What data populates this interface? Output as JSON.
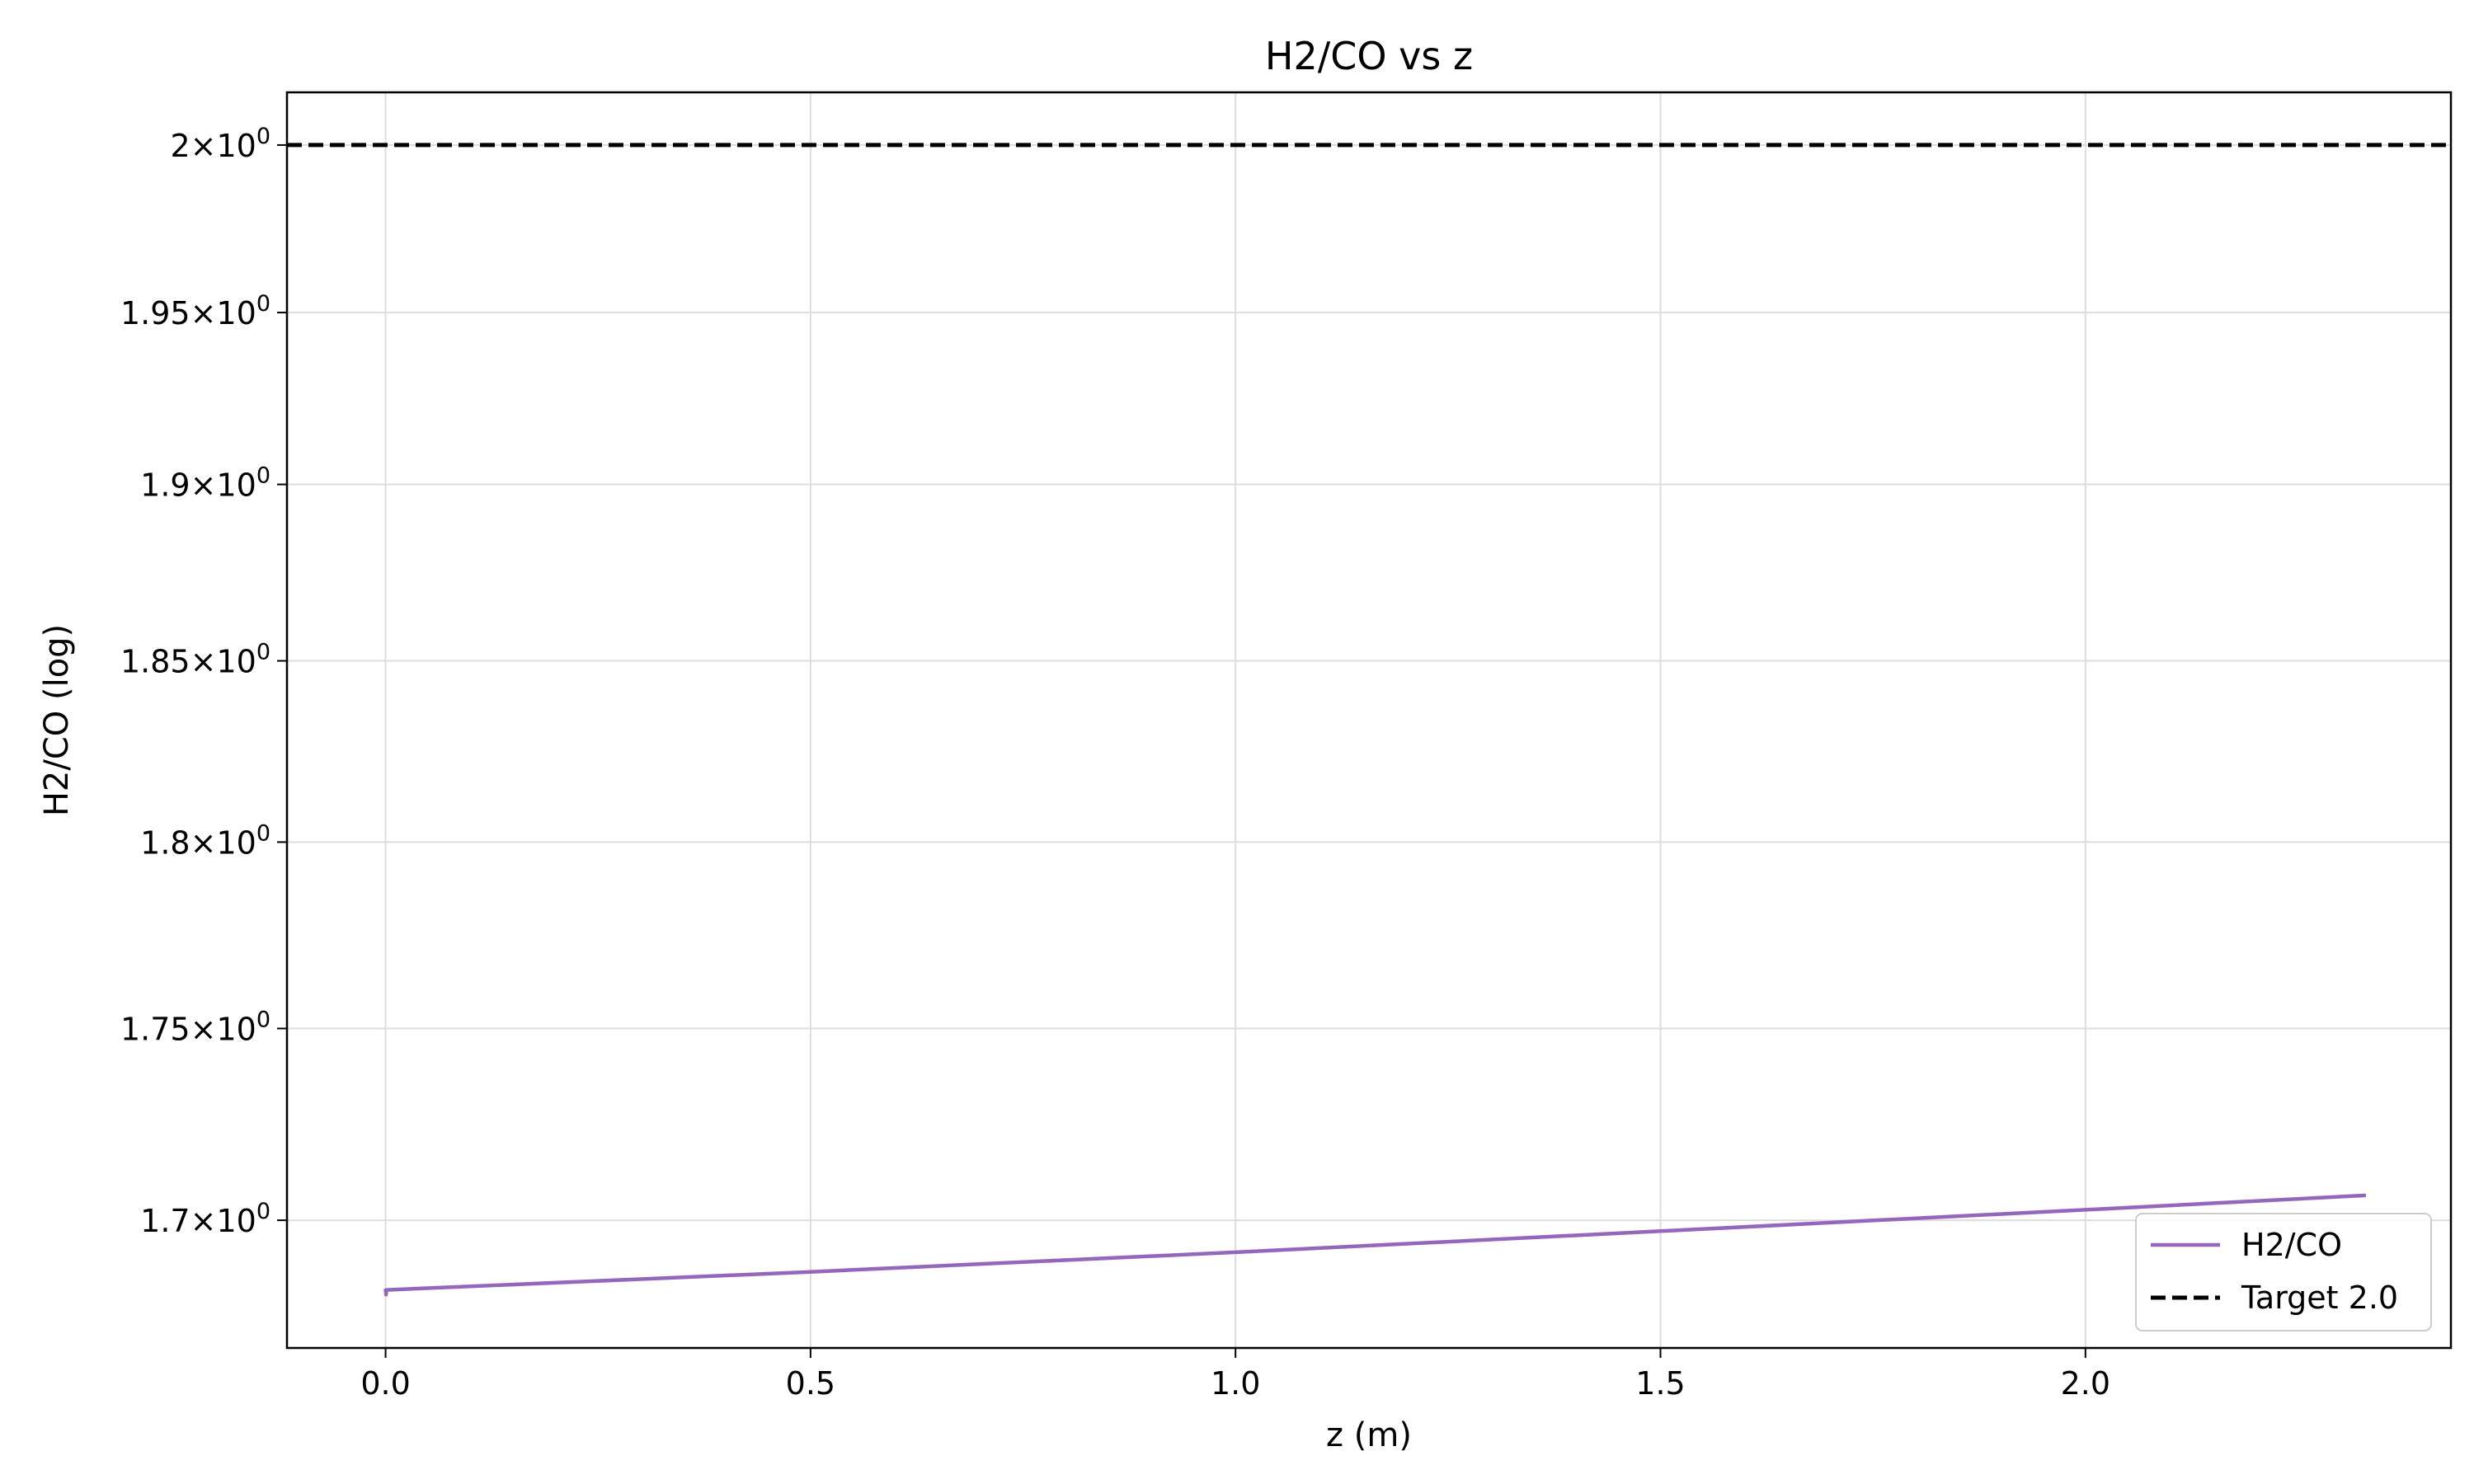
{
  "chart_data": {
    "type": "line",
    "title": "H2/CO vs z",
    "xlabel": "z (m)",
    "ylabel": "H2/CO (log)",
    "xscale": "linear",
    "yscale": "log",
    "xlim": [
      -0.116,
      2.43
    ],
    "ylim": [
      1.6675,
      2.016
    ],
    "grid": true,
    "legend_position": "lower right",
    "xticks": [
      {
        "value": 0.0,
        "label": "0.0"
      },
      {
        "value": 0.5,
        "label": "0.5"
      },
      {
        "value": 1.0,
        "label": "1.0"
      },
      {
        "value": 1.5,
        "label": "1.5"
      },
      {
        "value": 2.0,
        "label": "2.0"
      }
    ],
    "yticks": [
      {
        "value": 1.7,
        "mantissa": "1.7",
        "base": "10",
        "exponent": "0"
      },
      {
        "value": 1.75,
        "mantissa": "1.75",
        "base": "10",
        "exponent": "0"
      },
      {
        "value": 1.8,
        "mantissa": "1.8",
        "base": "10",
        "exponent": "0"
      },
      {
        "value": 1.85,
        "mantissa": "1.85",
        "base": "10",
        "exponent": "0"
      },
      {
        "value": 1.9,
        "mantissa": "1.9",
        "base": "10",
        "exponent": "0"
      },
      {
        "value": 1.95,
        "mantissa": "1.95",
        "base": "10",
        "exponent": "0"
      },
      {
        "value": 2.0,
        "mantissa": "2",
        "base": "10",
        "exponent": "0"
      }
    ],
    "series": [
      {
        "name": "H2/CO",
        "color": "#9467bd",
        "style": "solid",
        "x": [
          0.0,
          0.0005,
          0.001,
          0.5,
          1.0,
          1.5,
          2.0,
          2.33
        ],
        "y": [
          1.6825,
          1.681,
          1.6822,
          1.6868,
          1.6918,
          1.6972,
          1.7027,
          1.7064
        ]
      },
      {
        "name": "Target 2.0",
        "color": "#000000",
        "style": "dashed",
        "x": [
          -0.116,
          2.43
        ],
        "y": [
          2.0,
          2.0
        ]
      }
    ]
  }
}
